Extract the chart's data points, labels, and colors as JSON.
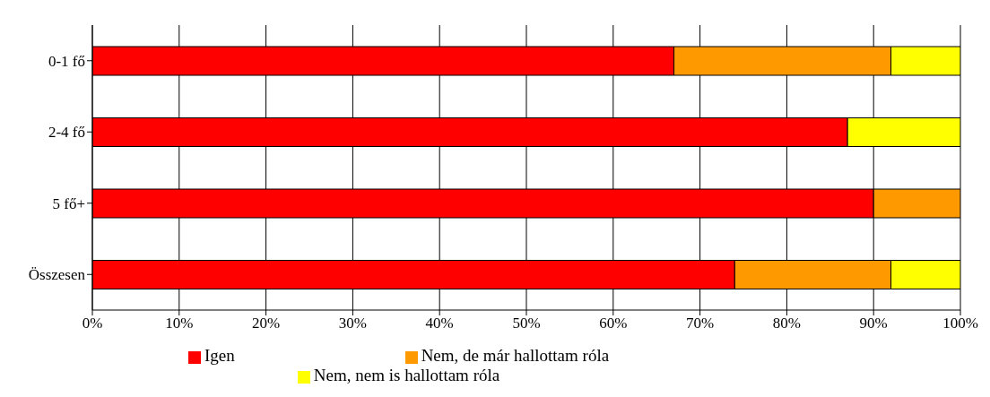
{
  "chart_data": {
    "type": "bar",
    "orientation": "horizontal",
    "stacked": true,
    "categories": [
      "0-1 fő",
      "2-4 fő",
      "5 fő+",
      "Összesen"
    ],
    "series": [
      {
        "name": "Igen",
        "color": "#ff0000",
        "values": [
          67,
          87,
          90,
          74
        ]
      },
      {
        "name": "Nem, de már hallottam  róla",
        "color": "#ff9900",
        "values": [
          25,
          0,
          10,
          18
        ]
      },
      {
        "name": "Nem, nem is hallottam róla",
        "color": "#ffff00",
        "values": [
          8,
          13,
          0,
          8
        ]
      }
    ],
    "xlim": [
      0,
      100
    ],
    "xticks": [
      {
        "value": 0,
        "label": "0%"
      },
      {
        "value": 10,
        "label": "10%"
      },
      {
        "value": 20,
        "label": "20%"
      },
      {
        "value": 30,
        "label": "30%"
      },
      {
        "value": 40,
        "label": "40%"
      },
      {
        "value": 50,
        "label": "50%"
      },
      {
        "value": 60,
        "label": "60%"
      },
      {
        "value": 70,
        "label": "70%"
      },
      {
        "value": 80,
        "label": "80%"
      },
      {
        "value": 90,
        "label": "90%"
      },
      {
        "value": 100,
        "label": "100%"
      }
    ],
    "grid": "x",
    "legend": "bottom"
  }
}
